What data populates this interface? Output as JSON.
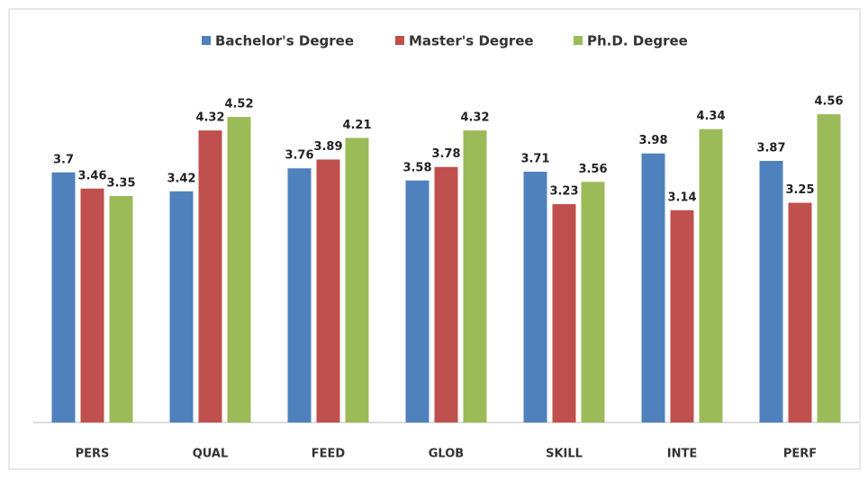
{
  "chart_data": {
    "type": "bar",
    "categories": [
      "PERS",
      "QUAL",
      "FEED",
      "GLOB",
      "SKILL",
      "INTE",
      "PERF"
    ],
    "series": [
      {
        "name": "Bachelor's Degree",
        "color": "#4f81bd",
        "values": [
          3.7,
          3.42,
          3.76,
          3.58,
          3.71,
          3.98,
          3.87
        ]
      },
      {
        "name": "Master's Degree",
        "color": "#c0504d",
        "values": [
          3.46,
          4.32,
          3.89,
          3.78,
          3.23,
          3.14,
          3.25
        ]
      },
      {
        "name": "Ph.D. Degree",
        "color": "#9bbb59",
        "values": [
          3.35,
          4.52,
          4.21,
          4.32,
          3.56,
          4.34,
          4.56
        ]
      }
    ],
    "ylim": [
      0,
      5
    ],
    "legend": "top"
  }
}
